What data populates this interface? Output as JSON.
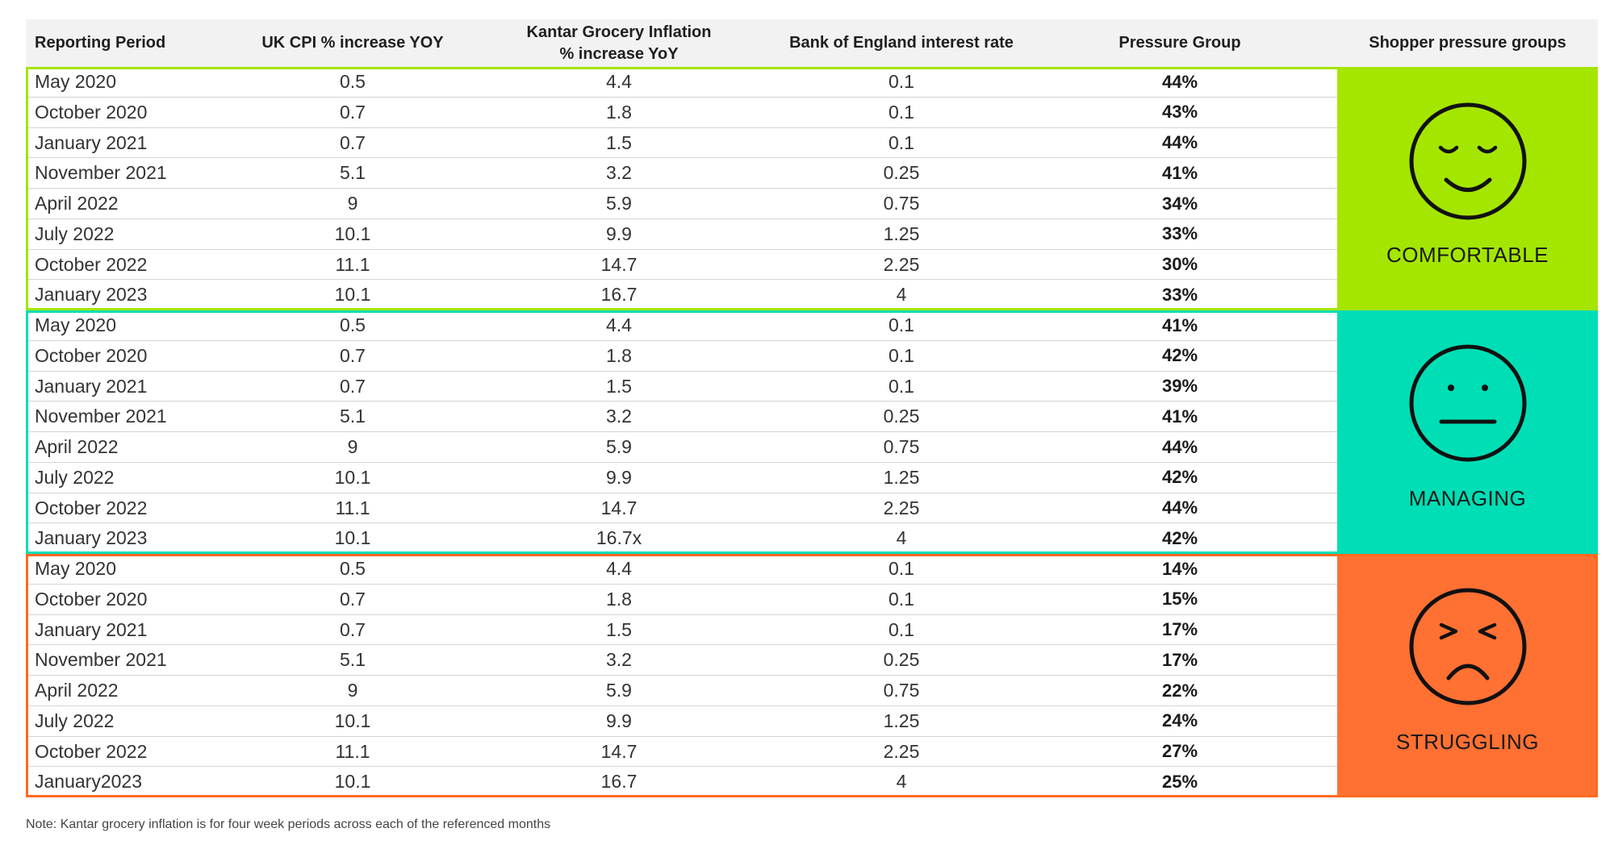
{
  "columns": [
    "Reporting Period",
    "UK CPI % increase YOY",
    "Kantar Grocery Inflation % increase YoY",
    "Bank of England interest rate",
    "Pressure Group",
    "Shopper pressure groups"
  ],
  "groups": [
    {
      "label": "COMFORTABLE",
      "face_icon": "smiling-face-icon",
      "color": "#a4e600",
      "border_color": "#a4e600",
      "rows": [
        {
          "period": "May 2020",
          "cpi": "0.5",
          "kantar": "4.4",
          "boe": "0.1",
          "pressure": "44%"
        },
        {
          "period": "October 2020",
          "cpi": "0.7",
          "kantar": "1.8",
          "boe": "0.1",
          "pressure": "43%"
        },
        {
          "period": "January 2021",
          "cpi": "0.7",
          "kantar": "1.5",
          "boe": "0.1",
          "pressure": "44%"
        },
        {
          "period": "November 2021",
          "cpi": "5.1",
          "kantar": "3.2",
          "boe": "0.25",
          "pressure": "41%"
        },
        {
          "period": "April 2022",
          "cpi": "9",
          "kantar": "5.9",
          "boe": "0.75",
          "pressure": "34%"
        },
        {
          "period": "July 2022",
          "cpi": "10.1",
          "kantar": "9.9",
          "boe": "1.25",
          "pressure": "33%"
        },
        {
          "period": "October 2022",
          "cpi": "11.1",
          "kantar": "14.7",
          "boe": "2.25",
          "pressure": "30%"
        },
        {
          "period": "January 2023",
          "cpi": "10.1",
          "kantar": "16.7",
          "boe": "4",
          "pressure": "33%"
        }
      ]
    },
    {
      "label": "MANAGING",
      "face_icon": "neutral-face-icon",
      "color": "#00deb5",
      "border_color": "#00deb5",
      "rows": [
        {
          "period": "May 2020",
          "cpi": "0.5",
          "kantar": "4.4",
          "boe": "0.1",
          "pressure": "41%"
        },
        {
          "period": "October 2020",
          "cpi": "0.7",
          "kantar": "1.8",
          "boe": "0.1",
          "pressure": "42%"
        },
        {
          "period": "January 2021",
          "cpi": "0.7",
          "kantar": "1.5",
          "boe": "0.1",
          "pressure": "39%"
        },
        {
          "period": "November 2021",
          "cpi": "5.1",
          "kantar": "3.2",
          "boe": "0.25",
          "pressure": "41%"
        },
        {
          "period": "April 2022",
          "cpi": "9",
          "kantar": "5.9",
          "boe": "0.75",
          "pressure": "44%"
        },
        {
          "period": "July 2022",
          "cpi": "10.1",
          "kantar": "9.9",
          "boe": "1.25",
          "pressure": "42%"
        },
        {
          "period": "October 2022",
          "cpi": "11.1",
          "kantar": "14.7",
          "boe": "2.25",
          "pressure": "44%"
        },
        {
          "period": "January 2023",
          "cpi": "10.1",
          "kantar": "16.7x",
          "boe": "4",
          "pressure": "42%"
        }
      ]
    },
    {
      "label": "STRUGGLING",
      "face_icon": "frowning-face-icon",
      "color": "#ff7033",
      "border_color": "#ff6a1f",
      "rows": [
        {
          "period": "May 2020",
          "cpi": "0.5",
          "kantar": "4.4",
          "boe": "0.1",
          "pressure": "14%"
        },
        {
          "period": "October 2020",
          "cpi": "0.7",
          "kantar": "1.8",
          "boe": "0.1",
          "pressure": "15%"
        },
        {
          "period": "January 2021",
          "cpi": "0.7",
          "kantar": "1.5",
          "boe": "0.1",
          "pressure": "17%"
        },
        {
          "period": "November 2021",
          "cpi": "5.1",
          "kantar": "3.2",
          "boe": "0.25",
          "pressure": "17%"
        },
        {
          "period": "April 2022",
          "cpi": "9",
          "kantar": "5.9",
          "boe": "0.75",
          "pressure": "22%"
        },
        {
          "period": "July 2022",
          "cpi": "10.1",
          "kantar": "9.9",
          "boe": "1.25",
          "pressure": "24%"
        },
        {
          "period": "October 2022",
          "cpi": "11.1",
          "kantar": "14.7",
          "boe": "2.25",
          "pressure": "27%"
        },
        {
          "period": "January2023",
          "cpi": "10.1",
          "kantar": "16.7",
          "boe": "4",
          "pressure": "25%"
        }
      ]
    }
  ],
  "note": "Note: Kantar grocery inflation is for four week periods across each of the referenced months",
  "chart_data": {
    "type": "table",
    "columns": [
      "Reporting Period",
      "UK CPI % increase YOY",
      "Kantar Grocery Inflation % increase YoY",
      "Bank of England interest rate",
      "Pressure Group",
      "Shopper pressure groups"
    ],
    "periods": [
      "May 2020",
      "October 2020",
      "January 2021",
      "November 2021",
      "April 2022",
      "July 2022",
      "October 2022",
      "January 2023"
    ],
    "uk_cpi": [
      0.5,
      0.7,
      0.7,
      5.1,
      9,
      10.1,
      11.1,
      10.1
    ],
    "kantar_grocery_inflation": [
      4.4,
      1.8,
      1.5,
      3.2,
      5.9,
      9.9,
      14.7,
      16.7
    ],
    "boe_interest_rate": [
      0.1,
      0.1,
      0.1,
      0.25,
      0.75,
      1.25,
      2.25,
      4
    ],
    "series": [
      {
        "name": "COMFORTABLE",
        "values": [
          44,
          43,
          44,
          41,
          34,
          33,
          30,
          33
        ]
      },
      {
        "name": "MANAGING",
        "values": [
          41,
          42,
          39,
          41,
          44,
          42,
          44,
          42
        ]
      },
      {
        "name": "STRUGGLING",
        "values": [
          14,
          15,
          17,
          17,
          22,
          24,
          27,
          25
        ]
      }
    ]
  }
}
